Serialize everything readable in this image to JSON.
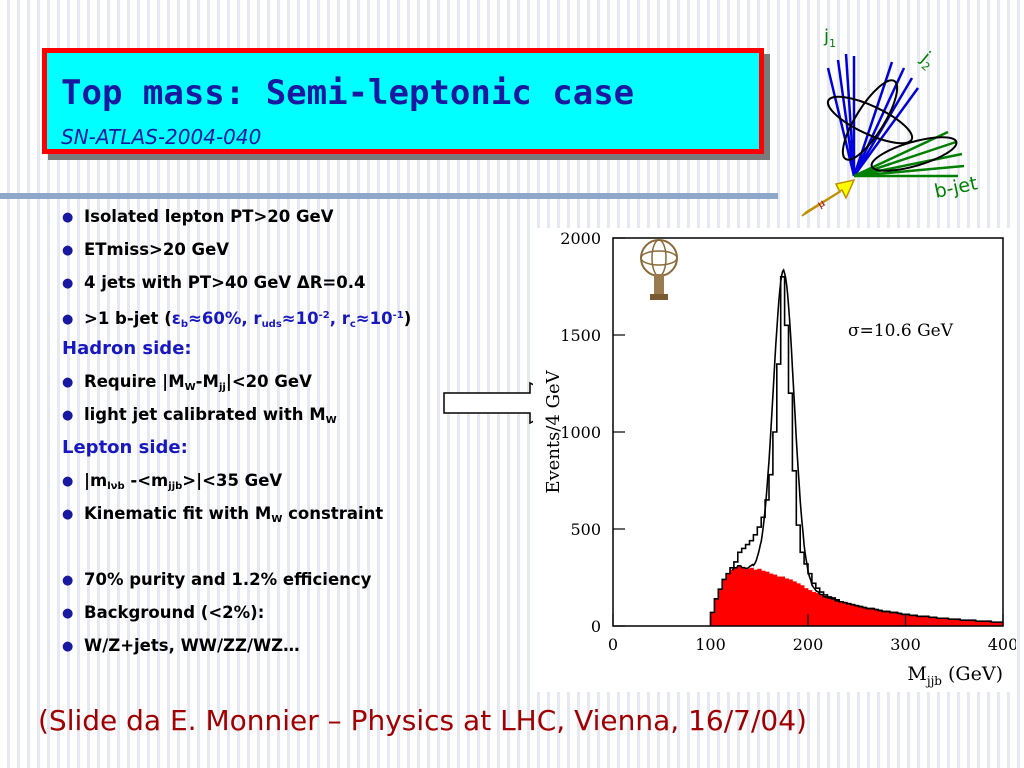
{
  "title": {
    "main": "Top mass: Semi-leptonic case",
    "sub": "SN-ATLAS-2004-040"
  },
  "bullets": {
    "b1": "Isolated lepton PT>20 GeV",
    "b2": "ETmiss>20 GeV",
    "b3": "4 jets with PT>40 GeV ΔR=0.4",
    "b4_pre": ">1 b-jet (",
    "b4_eps": "ε",
    "b4_eps_sub": "b",
    "b4_mid1": "≈60%, r",
    "b4_r_sub": "uds",
    "b4_mid2": "≈10",
    "b4_exp1": "-2",
    "b4_mid3": ", r",
    "b4_rc_sub": "c",
    "b4_mid4": "≈10",
    "b4_exp2": "-1",
    "b4_close": ")",
    "hadron_side": "Hadron side:",
    "h1_pre": "Require |M",
    "h1_sub1": "W",
    "h1_mid": "-M",
    "h1_sub2": "jj",
    "h1_post": "|<20 GeV",
    "h2_pre": "light jet calibrated with M",
    "h2_sub": "W",
    "lepton_side": "Lepton side:",
    "l1_pre": "|m",
    "l1_sub1": "lνb",
    "l1_mid": " -<m",
    "l1_sub2": "jjb",
    "l1_post": ">|<35 GeV",
    "l2_pre": "Kinematic fit with M",
    "l2_sub": "W",
    "l2_post": " constraint",
    "c1": "70% purity and 1.2% efficiency",
    "c2": "Background (<2%):",
    "c3": "W/Z+jets, WW/ZZ/WZ…"
  },
  "jet_diagram": {
    "j1_label": "j",
    "j1_sub": "1",
    "j2_label": "j",
    "j2_sub": "2",
    "bjet_label": "b-jet",
    "lepton_label": "μ",
    "colors": {
      "light_jets": "#0000dd",
      "b_jet": "#008000",
      "labels": "#008000",
      "lepton": "#ffff00"
    }
  },
  "chart_data": {
    "type": "histogram",
    "xlabel": "M",
    "xlabel_sub": "jjb",
    "xlabel_unit": " (GeV)",
    "ylabel": "Events/4 GeV",
    "annotation": "σ=10.6 GeV",
    "xlim": [
      0,
      400
    ],
    "ylim": [
      0,
      2000
    ],
    "x_ticks": [
      0,
      100,
      200,
      300,
      400
    ],
    "y_ticks": [
      0,
      500,
      1000,
      1500,
      2000
    ],
    "bin_width": 4,
    "bin_starts": [
      100,
      104,
      108,
      112,
      116,
      120,
      124,
      128,
      132,
      136,
      140,
      144,
      148,
      152,
      156,
      160,
      164,
      168,
      172,
      176,
      180,
      184,
      188,
      192,
      196,
      200,
      204,
      208,
      212,
      216,
      220,
      224,
      228,
      232,
      236,
      240,
      244,
      248,
      252,
      256,
      260,
      264,
      268,
      272,
      276,
      280,
      284,
      288,
      292,
      296,
      300,
      304,
      308,
      312,
      316,
      320,
      324,
      328,
      332,
      336,
      340,
      344,
      348,
      352,
      356,
      360,
      364,
      368,
      372,
      376,
      380,
      384,
      388,
      392,
      396
    ],
    "series": [
      {
        "name": "",
        "style": "filled",
        "color": "#ff0000",
        "values": [
          70,
          140,
          190,
          240,
          270,
          290,
          300,
          310,
          300,
          295,
          300,
          290,
          295,
          285,
          280,
          270,
          265,
          255,
          255,
          245,
          240,
          230,
          220,
          210,
          195,
          185,
          175,
          170,
          160,
          150,
          145,
          140,
          130,
          125,
          120,
          115,
          110,
          105,
          100,
          95,
          90,
          90,
          85,
          80,
          75,
          75,
          70,
          70,
          65,
          60,
          60,
          55,
          55,
          50,
          50,
          50,
          45,
          45,
          40,
          40,
          40,
          35,
          35,
          35,
          30,
          30,
          30,
          30,
          25,
          25,
          25,
          25,
          20,
          20,
          20
        ]
      },
      {
        "name": "",
        "style": "step",
        "color": "#000000",
        "values": [
          70,
          140,
          190,
          240,
          270,
          300,
          330,
          380,
          400,
          420,
          440,
          470,
          510,
          560,
          650,
          780,
          1000,
          1350,
          1800,
          1550,
          1200,
          800,
          520,
          380,
          320,
          270,
          220,
          195,
          175,
          160,
          150,
          145,
          135,
          125,
          120,
          115,
          110,
          105,
          100,
          95,
          90,
          90,
          85,
          80,
          75,
          75,
          70,
          70,
          65,
          60,
          60,
          55,
          55,
          50,
          50,
          50,
          45,
          45,
          40,
          40,
          40,
          35,
          35,
          35,
          30,
          30,
          30,
          30,
          25,
          25,
          25,
          25,
          20,
          20,
          20
        ]
      }
    ],
    "fit_function": {
      "type": "gaussian+background",
      "mean": 175,
      "sigma": 10.6,
      "peak": 1580
    }
  },
  "footer": "(Slide da E. Monnier – Physics at LHC, Vienna, 16/7/04)"
}
